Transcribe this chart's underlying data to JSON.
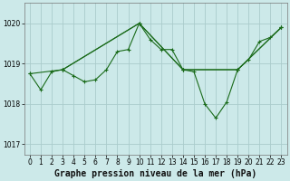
{
  "title": "Graphe pression niveau de la mer (hPa)",
  "background_color": "#cce9e9",
  "grid_color": "#aacccc",
  "line_color": "#1a6b1a",
  "series1_x": [
    0,
    1,
    2,
    3,
    4,
    5,
    6,
    7,
    8,
    9,
    10,
    11,
    12,
    13,
    14,
    15,
    16,
    17,
    18,
    19,
    20,
    21,
    22,
    23
  ],
  "series1_y": [
    1018.75,
    1018.35,
    1018.8,
    1018.85,
    1018.7,
    1018.55,
    1018.6,
    1018.85,
    1019.3,
    1019.35,
    1020.0,
    1019.6,
    1019.35,
    1019.35,
    1018.85,
    1018.8,
    1018.0,
    1017.65,
    1018.05,
    1018.85,
    1019.1,
    1019.55,
    1019.65,
    1019.9
  ],
  "series2_x": [
    0,
    3,
    10,
    14,
    19,
    23
  ],
  "series2_y": [
    1018.75,
    1018.85,
    1020.0,
    1018.85,
    1018.85,
    1019.9
  ],
  "series3_x": [
    3,
    10,
    14,
    19,
    23
  ],
  "series3_y": [
    1018.85,
    1020.0,
    1018.85,
    1018.85,
    1019.9
  ],
  "ylim": [
    1016.75,
    1020.5
  ],
  "xlim": [
    -0.5,
    23.5
  ],
  "yticks": [
    1017,
    1018,
    1019,
    1020
  ],
  "xticks": [
    0,
    1,
    2,
    3,
    4,
    5,
    6,
    7,
    8,
    9,
    10,
    11,
    12,
    13,
    14,
    15,
    16,
    17,
    18,
    19,
    20,
    21,
    22,
    23
  ],
  "tick_fontsize": 5.5,
  "title_fontsize": 7.0,
  "figsize": [
    3.2,
    2.0
  ],
  "dpi": 100
}
